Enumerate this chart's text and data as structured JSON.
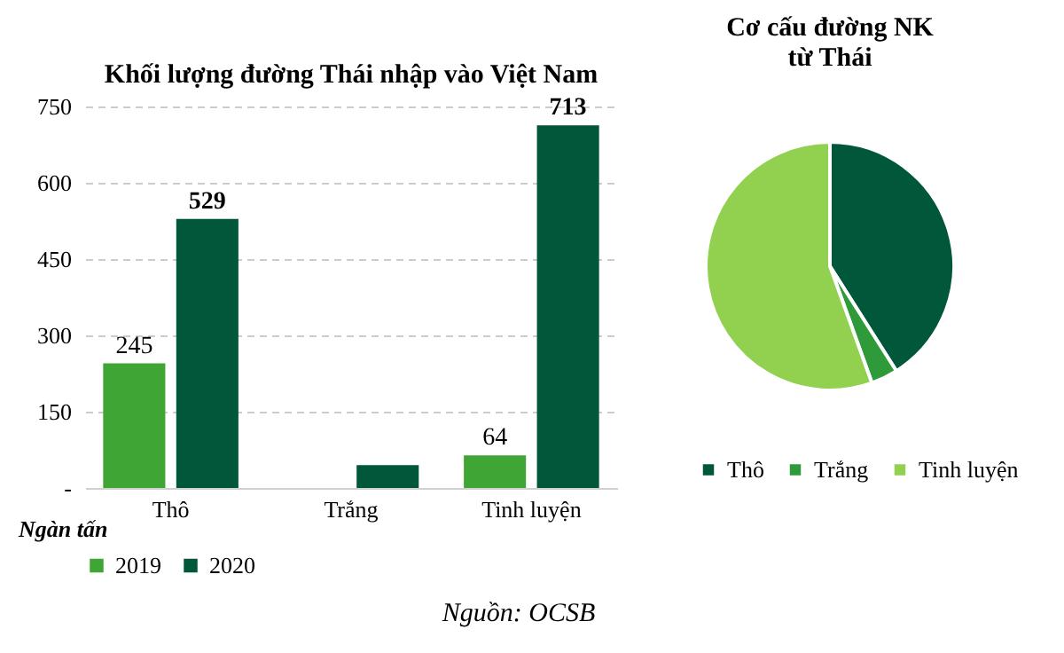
{
  "chart_data": [
    {
      "type": "bar",
      "title": "Khối lượng đường Thái nhập vào Việt Nam",
      "ylabel": "Ngàn tấn",
      "categories": [
        "Thô",
        "Trắng",
        "Tinh luyện"
      ],
      "series": [
        {
          "name": "2019",
          "color": "#3fa535",
          "values": [
            245,
            null,
            64
          ],
          "value_labels": [
            "245",
            null,
            "64"
          ]
        },
        {
          "name": "2020",
          "color": "#00573a",
          "values": [
            529,
            45,
            713
          ],
          "value_labels": [
            "529",
            null,
            "713"
          ]
        }
      ],
      "ylim": [
        0,
        750
      ],
      "yticks": [
        {
          "value": 0,
          "label": "-"
        },
        150,
        300,
        450,
        600,
        750
      ],
      "grid": "y",
      "legend": "bottom",
      "annotations": [
        "Nguồn: OCSB"
      ]
    },
    {
      "type": "pie",
      "title": "Cơ cấu đường NK từ Thái",
      "categories": [
        "Thô",
        "Trắng",
        "Tinh luyện"
      ],
      "values": [
        41,
        3.5,
        55.5
      ],
      "colors": [
        "#00573a",
        "#2e9a3a",
        "#92d050"
      ],
      "legend": "bottom"
    }
  ]
}
